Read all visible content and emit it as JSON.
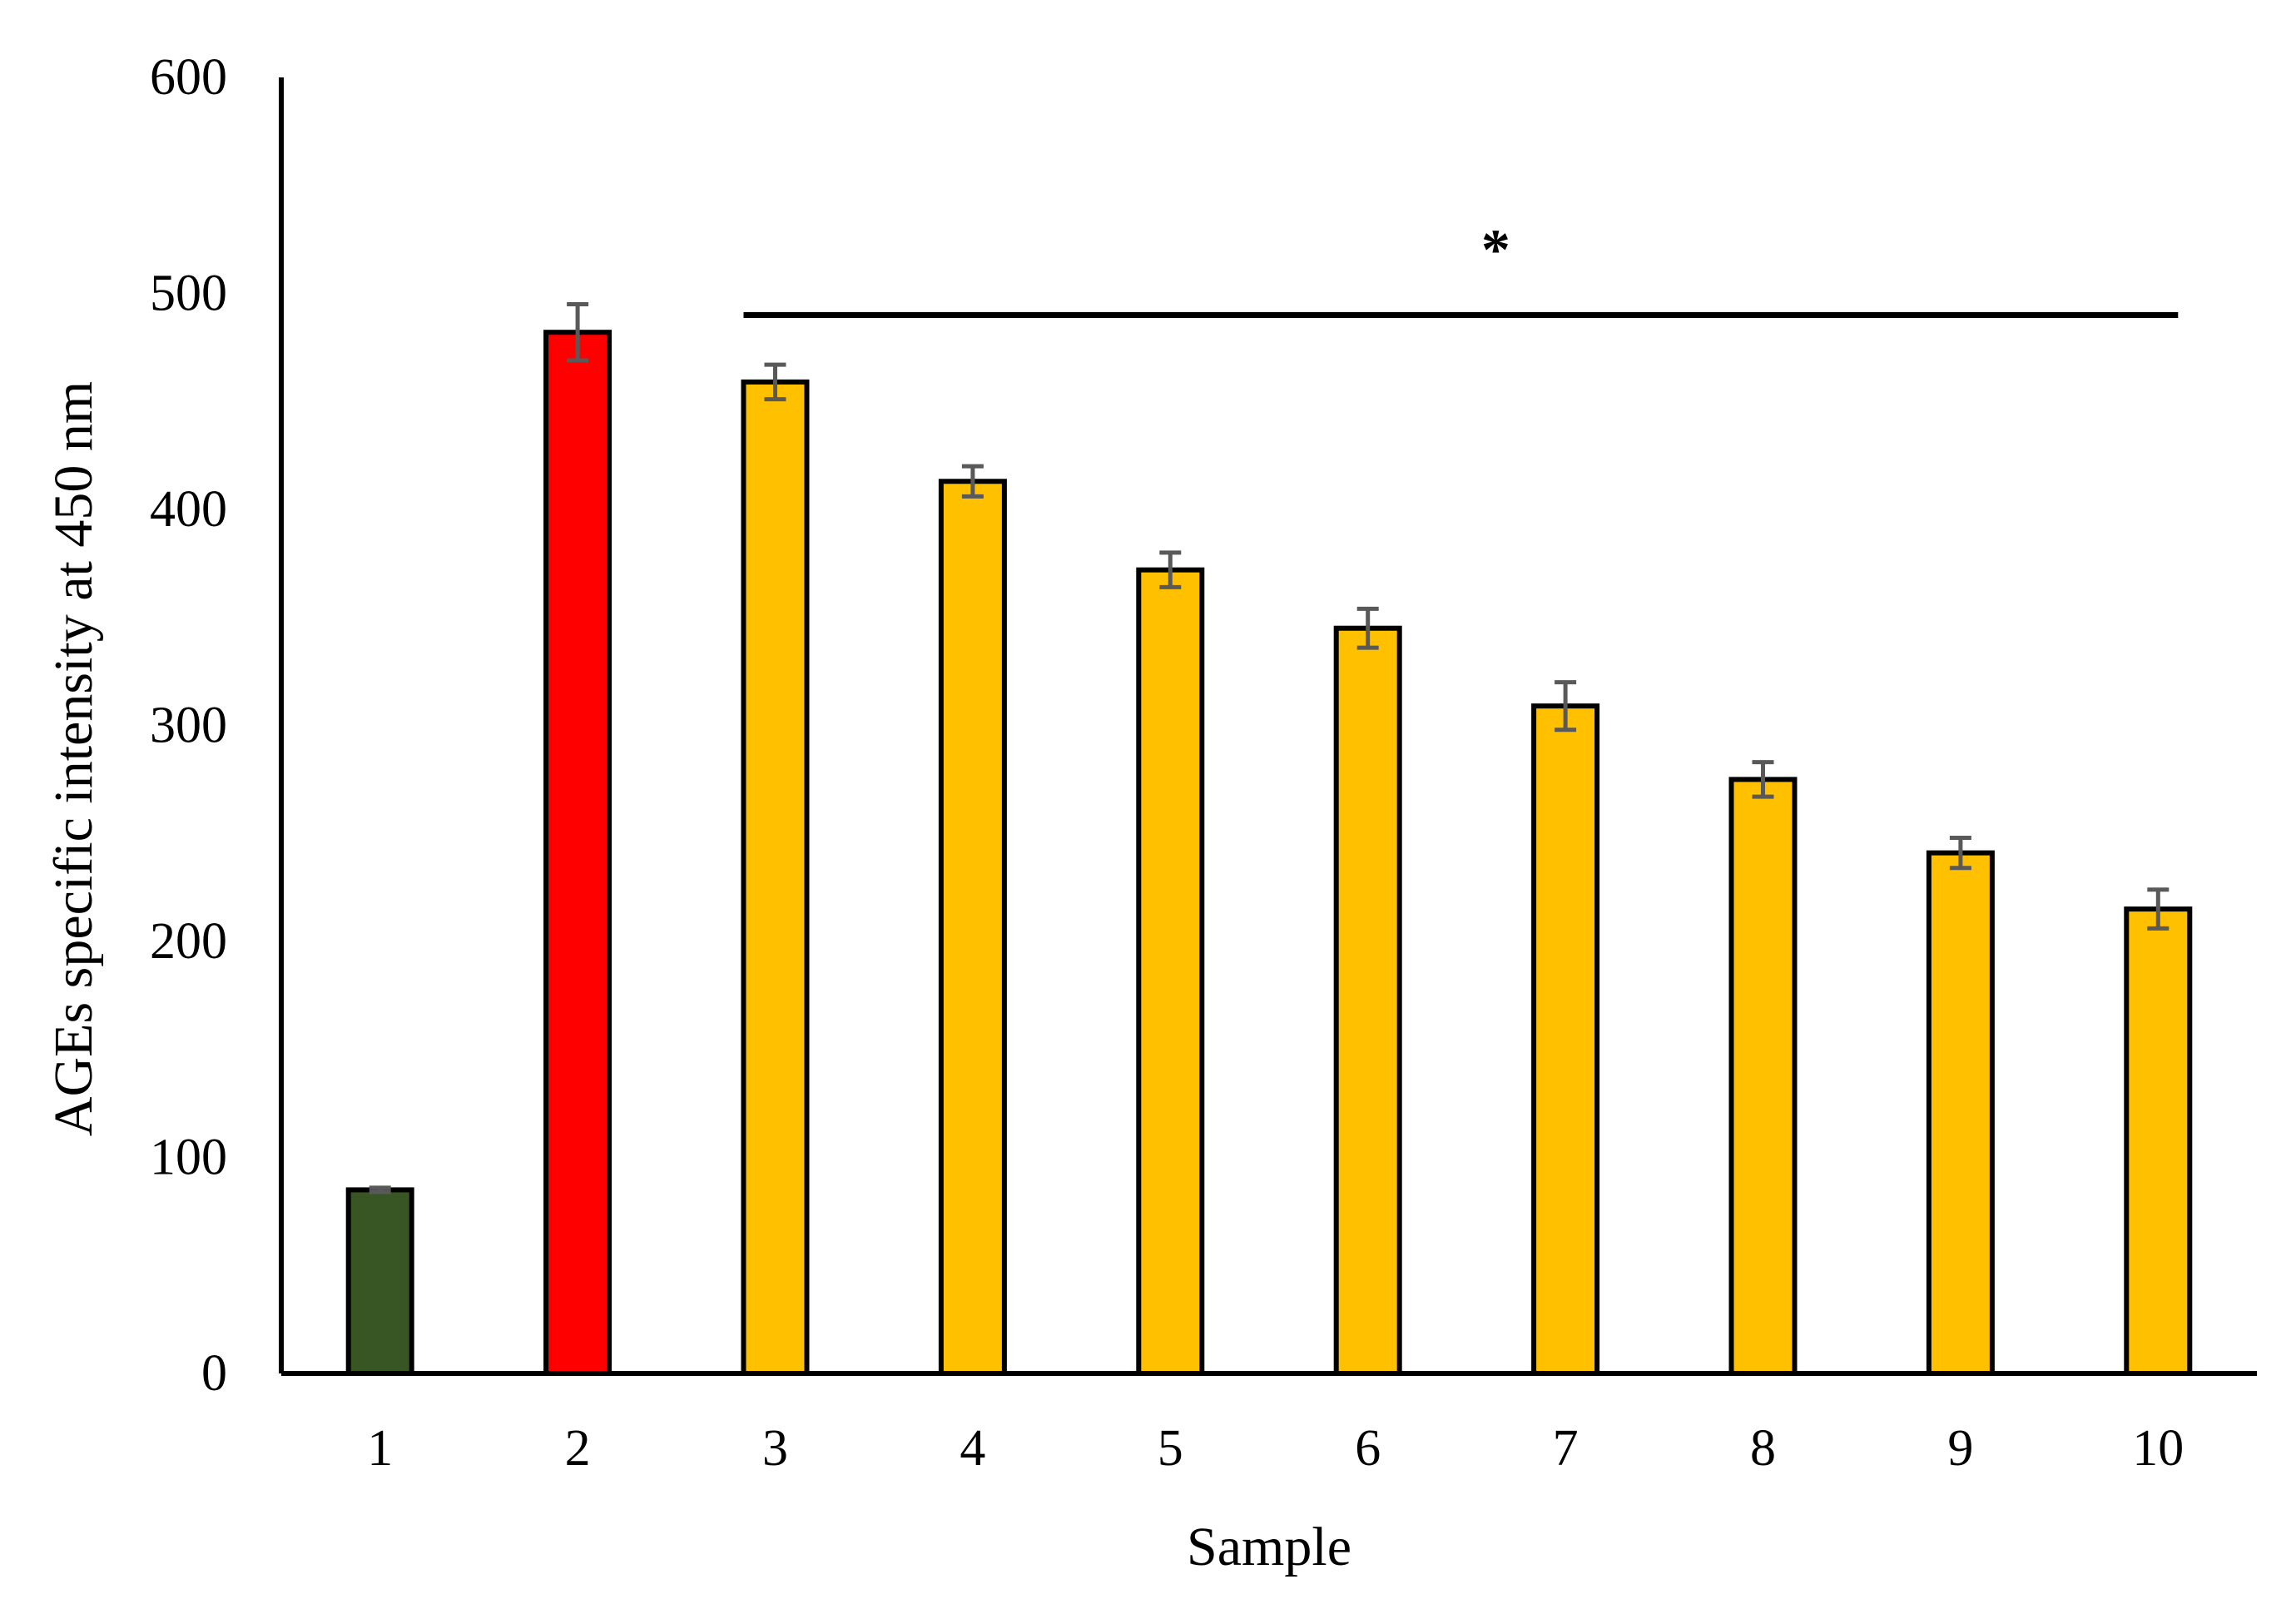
{
  "chart_data": {
    "type": "bar",
    "title": "",
    "xlabel": "Sample",
    "ylabel": "AGEs specific intensity at 450 nm",
    "ylim": [
      0,
      600
    ],
    "yticks": [
      0,
      100,
      200,
      300,
      400,
      500,
      600
    ],
    "categories": [
      "1",
      "2",
      "3",
      "4",
      "5",
      "6",
      "7",
      "8",
      "9",
      "10"
    ],
    "values": [
      85,
      482,
      459,
      413,
      372,
      345,
      309,
      275,
      241,
      215
    ],
    "errors": [
      1,
      13,
      8,
      7,
      8,
      9,
      11,
      8,
      7,
      9
    ],
    "bar_colors": [
      "#375623",
      "#ff0000",
      "#ffc000",
      "#ffc000",
      "#ffc000",
      "#ffc000",
      "#ffc000",
      "#ffc000",
      "#ffc000",
      "#ffc000"
    ],
    "bar_edge_color": "#000000",
    "error_bar_color": "#595959",
    "grid": false,
    "legend": "none",
    "annotation": {
      "text": "*",
      "from_category": "3",
      "to_category": "10",
      "value": 490
    }
  }
}
